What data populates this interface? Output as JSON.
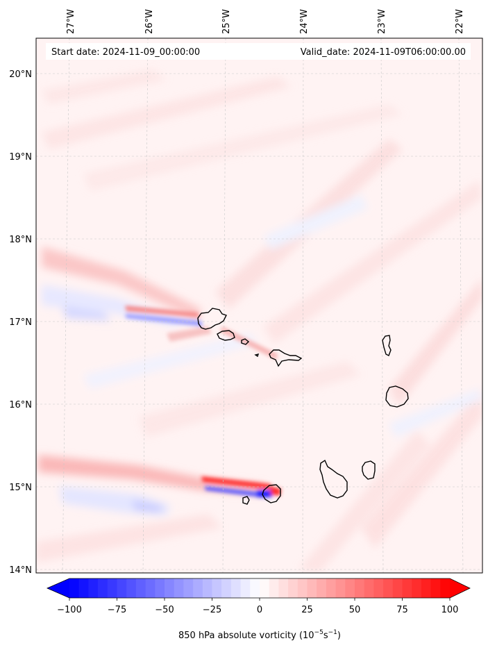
{
  "header": {
    "start_date": "Start date: 2024-11-09_00:00:00",
    "valid_date": "Valid_date: 2024-11-09T06:00:00.00"
  },
  "axes": {
    "lon_labels": [
      "27°W",
      "26°W",
      "25°W",
      "24°W",
      "23°W",
      "22°W"
    ],
    "lat_labels": [
      "20°N",
      "19°N",
      "18°N",
      "17°N",
      "16°N",
      "15°N",
      "14°N"
    ]
  },
  "colorbar": {
    "ticks": [
      "−100",
      "−75",
      "−50",
      "−25",
      "0",
      "25",
      "50",
      "75",
      "100"
    ],
    "label": "850 hPa absolute vorticity (10",
    "label_exp1": "−5",
    "label_mid": "s",
    "label_exp2": "−1",
    "label_end": ")",
    "min_color": "#0000ff",
    "max_color": "#ff0000"
  }
}
